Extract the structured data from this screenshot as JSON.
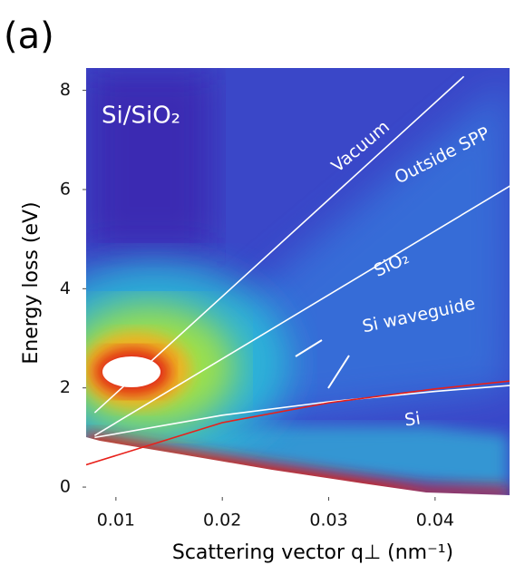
{
  "panel_label": "(a)",
  "chart_data": {
    "type": "line",
    "title": "Si/SiO₂",
    "x_label": "Scattering vector q⊥ (nm⁻¹)",
    "y_label": "Energy loss (eV)",
    "xlim": [
      0.0072,
      0.047
    ],
    "ylim": [
      -0.2,
      8.45
    ],
    "xticks": [
      0.01,
      0.02,
      0.03,
      0.04
    ],
    "yticks": [
      0,
      2,
      4,
      6,
      8
    ],
    "series": [
      {
        "color": "#ffffff",
        "x": [
          0.008,
          0.0427
        ],
        "values": [
          1.5,
          8.28
        ]
      },
      {
        "color": "#ffffff",
        "x": [
          0.008,
          0.0471
        ],
        "values": [
          1.04,
          6.08
        ]
      },
      {
        "color": "#ffffff",
        "x": [
          0.008,
          0.02,
          0.03,
          0.04,
          0.0471
        ],
        "values": [
          1.0,
          1.45,
          1.72,
          1.93,
          2.05
        ]
      },
      {
        "color": "#e8201a",
        "x": [
          0.0072,
          0.02,
          0.03,
          0.04,
          0.0471
        ],
        "values": [
          0.45,
          1.3,
          1.7,
          1.98,
          2.14
        ]
      }
    ],
    "annotations": [
      "Vacuum",
      "Outside SPP",
      "SiO₂",
      "Si waveguide",
      "Si"
    ]
  }
}
